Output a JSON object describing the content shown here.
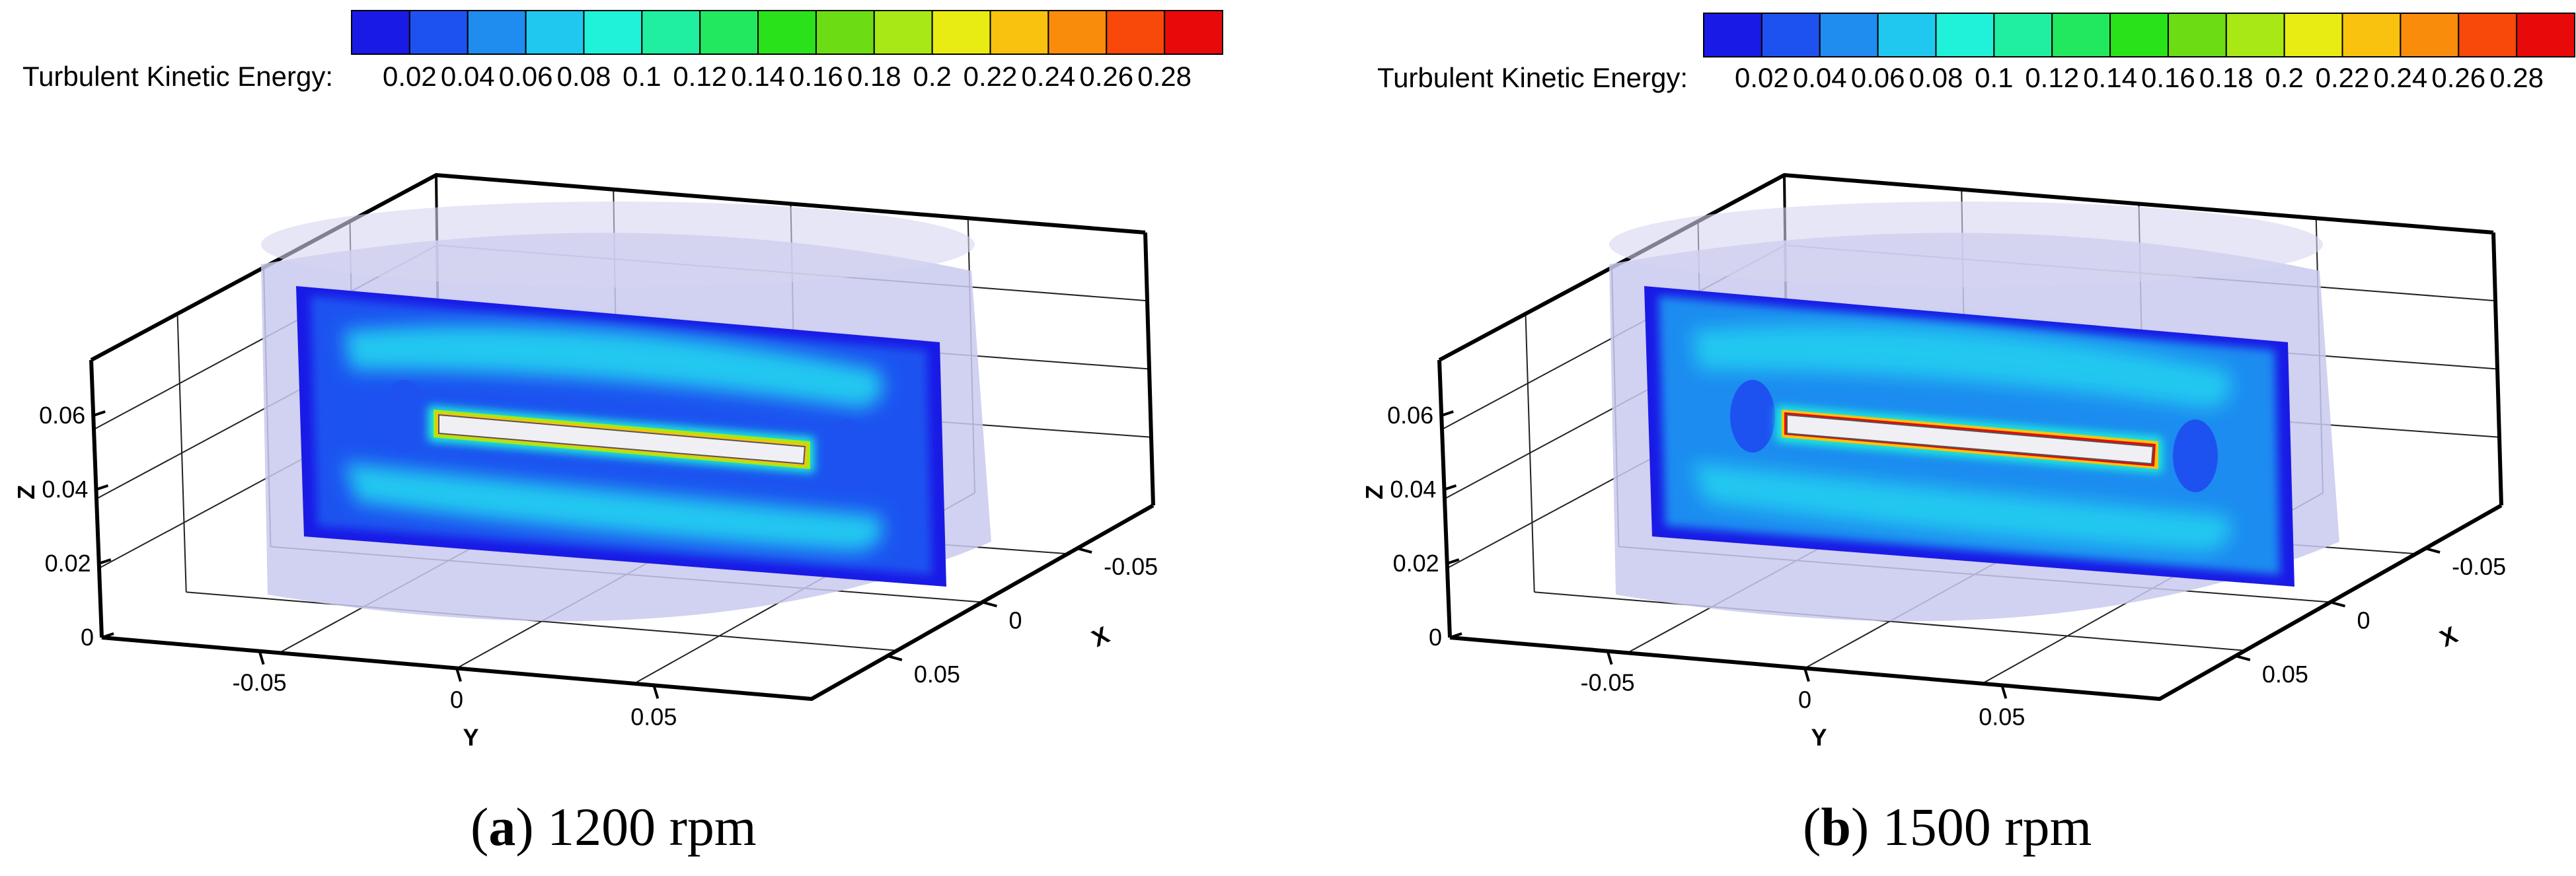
{
  "chart_data": [
    {
      "type": "heatmap",
      "caption": {
        "letter": "a",
        "close": ")",
        "open": "(",
        "text": "1200 rpm"
      },
      "colorbar": {
        "label": "Turbulent Kinetic Energy:",
        "ticks": [
          "0.02",
          "0.04",
          "0.06",
          "0.08",
          "0.1",
          "0.12",
          "0.14",
          "0.16",
          "0.18",
          "0.2",
          "0.22",
          "0.24",
          "0.26",
          "0.28"
        ],
        "range": [
          0.0,
          0.29
        ],
        "colors": [
          "#1a1ae6",
          "#1e52f0",
          "#1f8cf0",
          "#20c8f0",
          "#1ff2d8",
          "#20eea0",
          "#22e860",
          "#2ae21a",
          "#6cdc14",
          "#a8e814",
          "#e8ec12",
          "#f8c20e",
          "#fa8c0c",
          "#f8480a",
          "#e80a0a"
        ]
      },
      "axes": {
        "x": {
          "label": "X",
          "ticks": [
            "-0.05",
            "0",
            "0.05"
          ],
          "range": [
            -0.09,
            0.09
          ]
        },
        "y": {
          "label": "Y",
          "ticks": [
            "-0.05",
            "0",
            "0.05"
          ],
          "range": [
            -0.09,
            0.09
          ]
        },
        "z": {
          "label": "Z",
          "ticks": [
            "0",
            "0.02",
            "0.04",
            "0.06"
          ],
          "range": [
            0,
            0.075
          ]
        }
      },
      "field": {
        "background_tke": 0.035,
        "core_tke": 0.06,
        "blade_edge_tke": 0.18,
        "blade_peak_tke": 0.22
      }
    },
    {
      "type": "heatmap",
      "caption": {
        "letter": "b",
        "close": ")",
        "open": "(",
        "text": "1500 rpm"
      },
      "colorbar": {
        "label": "Turbulent Kinetic Energy:",
        "ticks": [
          "0.02",
          "0.04",
          "0.06",
          "0.08",
          "0.1",
          "0.12",
          "0.14",
          "0.16",
          "0.18",
          "0.2",
          "0.22",
          "0.24",
          "0.26",
          "0.28"
        ],
        "range": [
          0.0,
          0.29
        ],
        "colors": [
          "#1a1ae6",
          "#1e52f0",
          "#1f8cf0",
          "#20c8f0",
          "#1ff2d8",
          "#20eea0",
          "#22e860",
          "#2ae21a",
          "#6cdc14",
          "#a8e814",
          "#e8ec12",
          "#f8c20e",
          "#fa8c0c",
          "#f8480a",
          "#e80a0a"
        ]
      },
      "axes": {
        "x": {
          "label": "X",
          "ticks": [
            "-0.05",
            "0",
            "0.05"
          ],
          "range": [
            -0.09,
            0.09
          ]
        },
        "y": {
          "label": "Y",
          "ticks": [
            "-0.05",
            "0",
            "0.05"
          ],
          "range": [
            -0.09,
            0.09
          ]
        },
        "z": {
          "label": "Z",
          "ticks": [
            "0",
            "0.02",
            "0.04",
            "0.06"
          ],
          "range": [
            0,
            0.075
          ]
        }
      },
      "field": {
        "background_tke": 0.04,
        "core_tke": 0.065,
        "blade_edge_tke": 0.22,
        "blade_peak_tke": 0.28
      }
    }
  ]
}
